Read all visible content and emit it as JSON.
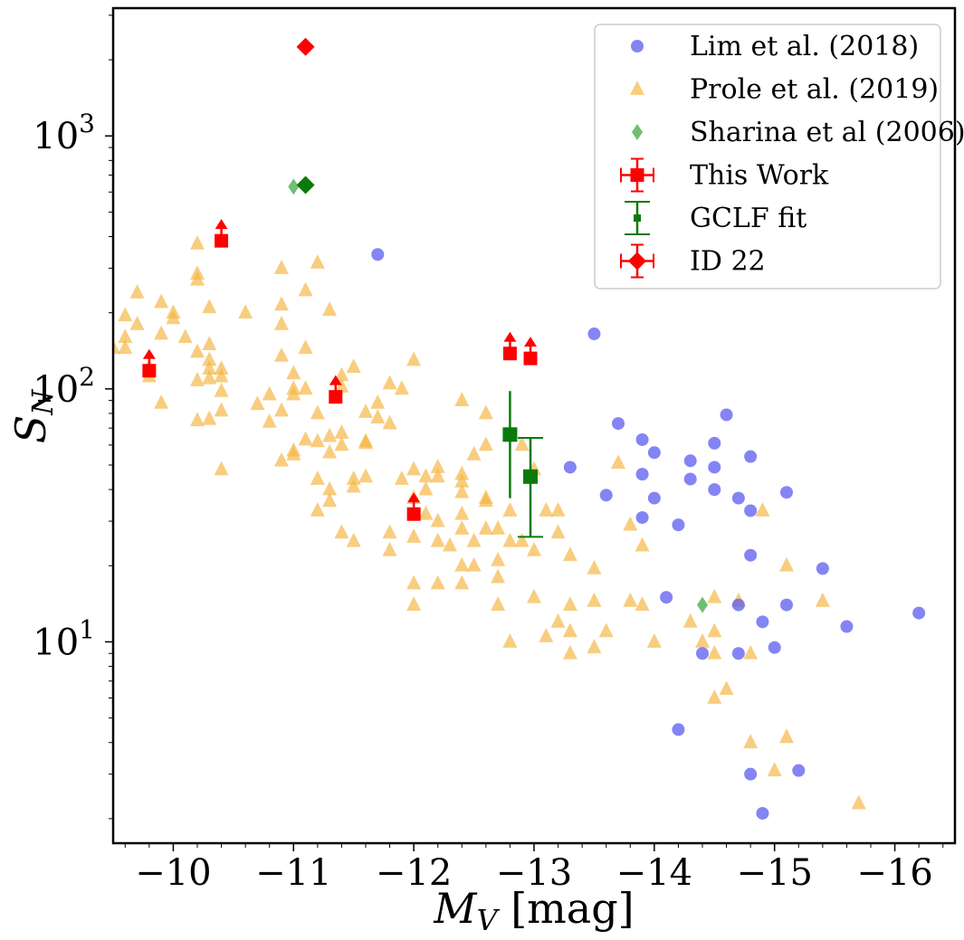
{
  "colors": {
    "lim": "#5b5bf0",
    "prole": "#f5b642",
    "sharina": "#4fae4f",
    "this_work": "#ff0000",
    "gclf": "#0a7a0a",
    "id22": "#ff0000",
    "axis": "#000000"
  },
  "chart_data": {
    "type": "scatter",
    "xlabel_main": "M",
    "xlabel_sub": "V",
    "xlabel_unit": " [mag]",
    "ylabel_main": "S",
    "ylabel_sub": "N",
    "x_inverted": true,
    "y_scale": "log",
    "xlim": [
      -9.5,
      -16.5
    ],
    "ylim": [
      1.6,
      3200
    ],
    "x_ticks": [
      {
        "value": -10,
        "label": "−10"
      },
      {
        "value": -11,
        "label": "−11"
      },
      {
        "value": -12,
        "label": "−12"
      },
      {
        "value": -13,
        "label": "−13"
      },
      {
        "value": -14,
        "label": "−14"
      },
      {
        "value": -15,
        "label": "−15"
      },
      {
        "value": -16,
        "label": "−16"
      }
    ],
    "y_ticks": [
      {
        "value": 10,
        "base": "10",
        "exp": "1"
      },
      {
        "value": 100,
        "base": "10",
        "exp": "2"
      },
      {
        "value": 1000,
        "base": "10",
        "exp": "3"
      }
    ],
    "legend": [
      {
        "key": "lim",
        "label": "Lim et al. (2018)"
      },
      {
        "key": "prole",
        "label": "Prole et al. (2019)"
      },
      {
        "key": "sharina",
        "label": "Sharina et al (2006)"
      },
      {
        "key": "this_work",
        "label": "This Work"
      },
      {
        "key": "gclf",
        "label": "GCLF fit"
      },
      {
        "key": "id22",
        "label": "ID 22"
      }
    ],
    "series": [
      {
        "name": "Lim et al. (2018)",
        "key": "lim",
        "marker": "circle",
        "points": [
          [
            -11.7,
            340
          ],
          [
            -13.5,
            165
          ],
          [
            -13.3,
            49
          ],
          [
            -13.6,
            38
          ],
          [
            -13.7,
            73
          ],
          [
            -13.9,
            63
          ],
          [
            -13.9,
            46
          ],
          [
            -13.9,
            31
          ],
          [
            -14.0,
            56
          ],
          [
            -14.0,
            37
          ],
          [
            -14.1,
            15
          ],
          [
            -14.2,
            29
          ],
          [
            -14.3,
            52
          ],
          [
            -14.3,
            44
          ],
          [
            -14.5,
            61
          ],
          [
            -14.5,
            40
          ],
          [
            -14.5,
            49
          ],
          [
            -14.6,
            79
          ],
          [
            -14.7,
            37
          ],
          [
            -14.8,
            54
          ],
          [
            -14.8,
            33
          ],
          [
            -14.8,
            22
          ],
          [
            -15.1,
            39
          ],
          [
            -15.4,
            19.5
          ],
          [
            -14.7,
            14
          ],
          [
            -15.1,
            14
          ],
          [
            -14.9,
            12
          ],
          [
            -15.6,
            11.5
          ],
          [
            -16.2,
            13
          ],
          [
            -14.4,
            9
          ],
          [
            -14.7,
            9
          ],
          [
            -15.0,
            9.5
          ],
          [
            -14.2,
            4.5
          ],
          [
            -14.8,
            3
          ],
          [
            -15.2,
            3.1
          ],
          [
            -14.9,
            2.1
          ]
        ]
      },
      {
        "name": "Prole et al. (2019)",
        "key": "prole",
        "marker": "triangle",
        "points": [
          [
            -9.5,
            145
          ],
          [
            -9.6,
            195
          ],
          [
            -9.6,
            160
          ],
          [
            -9.6,
            145
          ],
          [
            -9.7,
            240
          ],
          [
            -9.7,
            180
          ],
          [
            -9.8,
            122
          ],
          [
            -9.8,
            112
          ],
          [
            -9.9,
            220
          ],
          [
            -9.9,
            165
          ],
          [
            -9.9,
            88
          ],
          [
            -10.0,
            200
          ],
          [
            -10.0,
            190
          ],
          [
            -10.1,
            160
          ],
          [
            -10.2,
            375
          ],
          [
            -10.2,
            285
          ],
          [
            -10.2,
            270
          ],
          [
            -10.2,
            140
          ],
          [
            -10.2,
            108
          ],
          [
            -10.2,
            75
          ],
          [
            -10.3,
            210
          ],
          [
            -10.3,
            150
          ],
          [
            -10.3,
            130
          ],
          [
            -10.3,
            120
          ],
          [
            -10.3,
            110
          ],
          [
            -10.3,
            76
          ],
          [
            -10.4,
            120
          ],
          [
            -10.4,
            112
          ],
          [
            -10.4,
            98
          ],
          [
            -10.4,
            82
          ],
          [
            -10.4,
            48
          ],
          [
            -10.6,
            200
          ],
          [
            -10.7,
            87
          ],
          [
            -10.8,
            95
          ],
          [
            -10.8,
            74
          ],
          [
            -10.9,
            300
          ],
          [
            -10.9,
            215
          ],
          [
            -10.9,
            180
          ],
          [
            -10.9,
            135
          ],
          [
            -10.9,
            82
          ],
          [
            -10.9,
            52
          ],
          [
            -11.0,
            115
          ],
          [
            -11.0,
            100
          ],
          [
            -11.0,
            95
          ],
          [
            -11.0,
            57
          ],
          [
            -11.0,
            55
          ],
          [
            -11.1,
            245
          ],
          [
            -11.1,
            145
          ],
          [
            -11.1,
            100
          ],
          [
            -11.1,
            63
          ],
          [
            -11.2,
            315
          ],
          [
            -11.2,
            80
          ],
          [
            -11.2,
            62
          ],
          [
            -11.2,
            44
          ],
          [
            -11.2,
            33
          ],
          [
            -11.3,
            205
          ],
          [
            -11.3,
            65
          ],
          [
            -11.3,
            56
          ],
          [
            -11.3,
            40
          ],
          [
            -11.3,
            36
          ],
          [
            -11.4,
            113
          ],
          [
            -11.4,
            102
          ],
          [
            -11.4,
            67
          ],
          [
            -11.4,
            60
          ],
          [
            -11.4,
            27
          ],
          [
            -11.5,
            122
          ],
          [
            -11.5,
            44
          ],
          [
            -11.5,
            41
          ],
          [
            -11.5,
            25
          ],
          [
            -11.6,
            81
          ],
          [
            -11.6,
            62
          ],
          [
            -11.6,
            61
          ],
          [
            -11.6,
            45
          ],
          [
            -11.7,
            88
          ],
          [
            -11.7,
            77
          ],
          [
            -11.8,
            105
          ],
          [
            -11.8,
            73
          ],
          [
            -11.8,
            27
          ],
          [
            -11.8,
            23
          ],
          [
            -11.9,
            100
          ],
          [
            -11.9,
            44
          ],
          [
            -12.0,
            130
          ],
          [
            -12.0,
            48
          ],
          [
            -12.0,
            37
          ],
          [
            -12.0,
            26
          ],
          [
            -12.0,
            17
          ],
          [
            -12.0,
            14
          ],
          [
            -12.1,
            45
          ],
          [
            -12.1,
            40
          ],
          [
            -12.1,
            32
          ],
          [
            -12.2,
            49
          ],
          [
            -12.2,
            45
          ],
          [
            -12.2,
            30
          ],
          [
            -12.2,
            25
          ],
          [
            -12.2,
            17
          ],
          [
            -12.3,
            24
          ],
          [
            -12.4,
            90
          ],
          [
            -12.4,
            46
          ],
          [
            -12.4,
            43
          ],
          [
            -12.4,
            39
          ],
          [
            -12.4,
            32
          ],
          [
            -12.4,
            28
          ],
          [
            -12.4,
            20
          ],
          [
            -12.4,
            17
          ],
          [
            -12.5,
            55
          ],
          [
            -12.5,
            25
          ],
          [
            -12.5,
            20
          ],
          [
            -12.6,
            80
          ],
          [
            -12.6,
            60
          ],
          [
            -12.6,
            37
          ],
          [
            -12.6,
            36
          ],
          [
            -12.6,
            28
          ],
          [
            -12.7,
            28
          ],
          [
            -12.7,
            21
          ],
          [
            -12.7,
            18
          ],
          [
            -12.7,
            14
          ],
          [
            -12.8,
            33
          ],
          [
            -12.8,
            25
          ],
          [
            -12.8,
            10
          ],
          [
            -12.9,
            60
          ],
          [
            -12.9,
            25
          ],
          [
            -13.0,
            48
          ],
          [
            -13.0,
            23
          ],
          [
            -13.0,
            15
          ],
          [
            -13.1,
            33
          ],
          [
            -13.1,
            10.5
          ],
          [
            -13.2,
            33
          ],
          [
            -13.2,
            27
          ],
          [
            -13.2,
            12
          ],
          [
            -13.3,
            22
          ],
          [
            -13.3,
            14
          ],
          [
            -13.3,
            11
          ],
          [
            -13.3,
            9
          ],
          [
            -13.5,
            19.5
          ],
          [
            -13.5,
            14.5
          ],
          [
            -13.5,
            9.5
          ],
          [
            -13.6,
            11
          ],
          [
            -13.7,
            51
          ],
          [
            -13.8,
            29
          ],
          [
            -13.8,
            14.5
          ],
          [
            -13.9,
            24
          ],
          [
            -13.9,
            14
          ],
          [
            -14.0,
            10
          ],
          [
            -14.3,
            12
          ],
          [
            -14.4,
            10
          ],
          [
            -14.5,
            15
          ],
          [
            -14.5,
            11
          ],
          [
            -14.5,
            9
          ],
          [
            -14.5,
            6
          ],
          [
            -14.6,
            6.5
          ],
          [
            -14.7,
            14.5
          ],
          [
            -14.8,
            9
          ],
          [
            -14.8,
            4
          ],
          [
            -14.9,
            33
          ],
          [
            -15.0,
            3.1
          ],
          [
            -15.1,
            20
          ],
          [
            -15.1,
            4.2
          ],
          [
            -15.4,
            14.5
          ],
          [
            -15.7,
            2.3
          ]
        ]
      },
      {
        "name": "Sharina et al (2006)",
        "key": "sharina",
        "marker": "thin_diamond",
        "points": [
          [
            -11.0,
            630
          ],
          [
            -14.4,
            14
          ]
        ]
      }
    ],
    "this_work": [
      {
        "x": -9.8,
        "y": 118,
        "arrow": true
      },
      {
        "x": -10.4,
        "y": 385,
        "arrow": true
      },
      {
        "x": -11.35,
        "y": 93,
        "arrow": true
      },
      {
        "x": -12.0,
        "y": 32,
        "arrow": true
      },
      {
        "x": -12.8,
        "y": 138,
        "arrow": true
      },
      {
        "x": -12.97,
        "y": 132,
        "arrow": true
      }
    ],
    "gclf_fit": [
      {
        "x": -12.8,
        "y": 66,
        "y_low": 37,
        "y_high": 98,
        "caps": false
      },
      {
        "x": -12.97,
        "y": 45,
        "y_low": 26,
        "y_high": 64,
        "caps": true
      }
    ],
    "id22": [
      {
        "x": -11.1,
        "y": 2250,
        "color_key": "id22"
      },
      {
        "x": -11.1,
        "y": 640,
        "color_key": "gclf"
      }
    ]
  }
}
